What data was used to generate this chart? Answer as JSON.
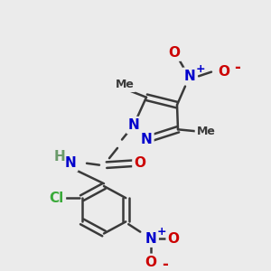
{
  "bg_color": "#ebebeb",
  "bond_color": "#3a3a3a",
  "bond_width": 1.8,
  "atom_colors": {
    "N": "#0000cc",
    "O": "#cc0000",
    "C": "#3a3a3a",
    "Cl": "#3aaa3a",
    "H": "#6a9a6a"
  },
  "fs": 11,
  "fs_small": 10
}
